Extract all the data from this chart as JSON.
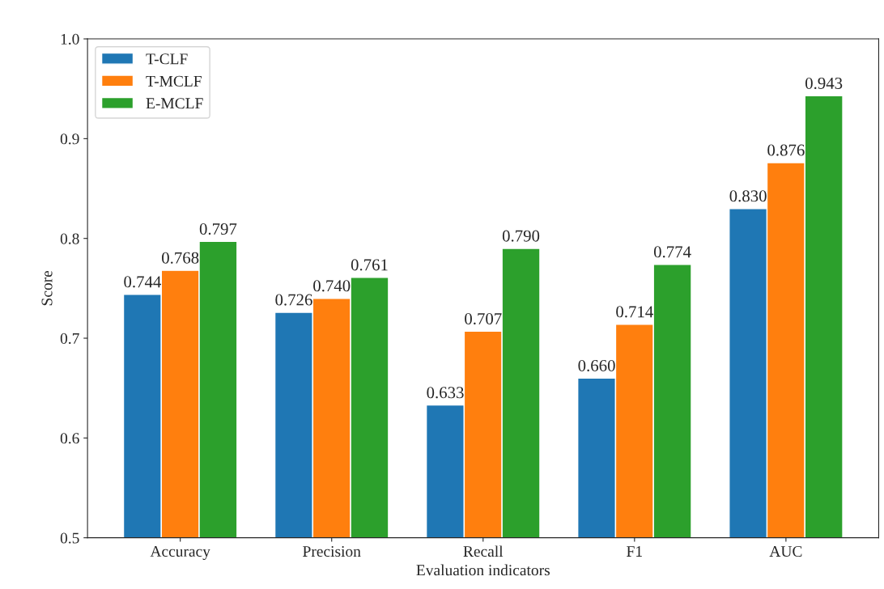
{
  "chart_data": {
    "type": "bar",
    "xlabel": "Evaluation indicators",
    "ylabel": "Score",
    "categories": [
      "Accuracy",
      "Precision",
      "Recall",
      "F1",
      "AUC"
    ],
    "series": [
      {
        "name": "T-CLF",
        "color": "#1f77b4",
        "values": [
          0.744,
          0.726,
          0.633,
          0.66,
          0.83
        ],
        "value_labels": [
          "0.744",
          "0.726",
          "0.633",
          "0.660",
          "0.830"
        ]
      },
      {
        "name": "T-MCLF",
        "color": "#ff7f0e",
        "values": [
          0.768,
          0.74,
          0.707,
          0.714,
          0.876
        ],
        "value_labels": [
          "0.768",
          "0.740",
          "0.707",
          "0.714",
          "0.876"
        ]
      },
      {
        "name": "E-MCLF",
        "color": "#2ca02c",
        "values": [
          0.797,
          0.761,
          0.79,
          0.774,
          0.943
        ],
        "value_labels": [
          "0.797",
          "0.761",
          "0.790",
          "0.774",
          "0.943"
        ]
      }
    ],
    "ylim": [
      0.5,
      1.0
    ],
    "yticks": [
      0.5,
      0.6,
      0.7,
      0.8,
      0.9,
      {
        "value": 1.0,
        "label": "1.0"
      }
    ],
    "grid": false,
    "legend": "top left"
  }
}
